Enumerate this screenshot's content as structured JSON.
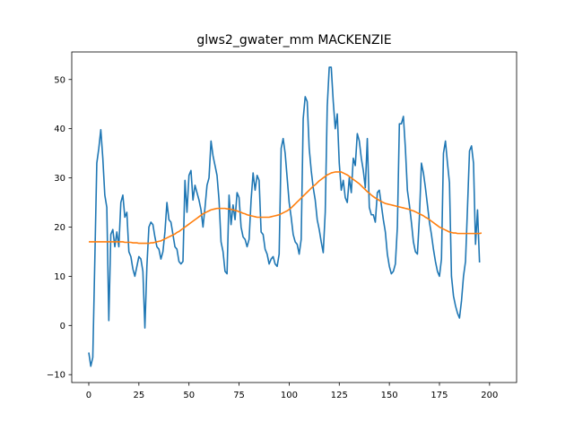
{
  "chart_data": {
    "type": "line",
    "title": "glws2_gwater_mm MACKENZIE",
    "xlabel": "",
    "ylabel": "",
    "xlim": [
      -8.5,
      213.5
    ],
    "ylim": [
      -11.6,
      55.6
    ],
    "xticks": [
      0,
      25,
      50,
      75,
      100,
      125,
      150,
      175,
      200
    ],
    "yticks": [
      -10,
      0,
      10,
      20,
      30,
      40,
      50
    ],
    "grid": false,
    "colors": [
      "#1f77b4",
      "#ff7f0e"
    ],
    "series": [
      {
        "values": [
          -5.5,
          -8.3,
          -6.5,
          13.0,
          33.0,
          36.0,
          39.8,
          34.0,
          26.5,
          24.0,
          1.0,
          18.5,
          19.5,
          16.0,
          19.0,
          16.0,
          25.0,
          26.5,
          22.0,
          23.0,
          15.0,
          14.0,
          11.5,
          10.0,
          12.0,
          14.0,
          13.5,
          11.0,
          -0.5,
          12.0,
          20.0,
          21.0,
          20.5,
          18.0,
          16.0,
          15.5,
          13.5,
          15.0,
          19.0,
          25.0,
          21.5,
          21.0,
          18.5,
          16.0,
          15.5,
          13.0,
          12.5,
          13.0,
          29.5,
          23.0,
          30.5,
          31.5,
          25.5,
          28.5,
          27.0,
          25.5,
          23.5,
          20.0,
          24.0,
          28.5,
          30.0,
          37.5,
          34.5,
          32.5,
          30.5,
          25.5,
          17.0,
          15.0,
          11.0,
          10.5,
          26.5,
          20.5,
          24.5,
          21.5,
          27.0,
          26.0,
          20.0,
          18.0,
          17.5,
          16.0,
          17.5,
          25.5,
          31.0,
          27.5,
          30.5,
          29.5,
          19.0,
          18.5,
          15.5,
          14.5,
          12.5,
          13.5,
          14.0,
          12.5,
          12.0,
          14.5,
          36.0,
          38.0,
          35.0,
          30.0,
          25.0,
          22.0,
          18.5,
          17.0,
          16.5,
          14.5,
          17.5,
          42.0,
          46.5,
          45.5,
          36.0,
          31.5,
          28.0,
          25.5,
          21.5,
          19.5,
          17.0,
          14.8,
          23.0,
          44.5,
          52.5,
          52.5,
          45.5,
          40.0,
          43.0,
          33.0,
          27.5,
          29.5,
          26.0,
          25.0,
          30.0,
          27.0,
          34.0,
          32.5,
          39.0,
          37.5,
          34.0,
          31.5,
          28.0,
          38.0,
          24.0,
          22.5,
          22.5,
          21.0,
          27.0,
          27.5,
          24.5,
          21.5,
          19.0,
          14.5,
          12.0,
          10.5,
          11.0,
          12.5,
          20.0,
          41.0,
          41.0,
          42.5,
          36.0,
          27.5,
          24.5,
          21.0,
          17.0,
          15.0,
          14.5,
          22.0,
          33.0,
          31.0,
          28.0,
          24.5,
          21.0,
          18.5,
          15.5,
          13.0,
          11.0,
          10.0,
          13.5,
          35.0,
          37.5,
          33.0,
          29.0,
          10.0,
          6.0,
          4.0,
          2.5,
          1.5,
          5.0,
          10.0,
          13.0,
          24.0,
          35.5,
          36.5,
          33.0,
          16.5,
          23.5,
          12.8
        ]
      },
      {
        "values": [
          17.0,
          17.0,
          17.0,
          17.0,
          17.0,
          17.0,
          17.0,
          17.0,
          17.0,
          17.0,
          17.0,
          17.0,
          17.0,
          17.0,
          17.0,
          17.0,
          17.0,
          17.0,
          16.9,
          16.9,
          16.9,
          16.9,
          16.8,
          16.8,
          16.8,
          16.7,
          16.7,
          16.7,
          16.7,
          16.7,
          16.7,
          16.8,
          16.8,
          16.9,
          17.0,
          17.1,
          17.2,
          17.4,
          17.6,
          17.8,
          18.0,
          18.2,
          18.4,
          18.6,
          18.9,
          19.1,
          19.4,
          19.7,
          20.0,
          20.3,
          20.6,
          20.9,
          21.2,
          21.5,
          21.8,
          22.1,
          22.4,
          22.7,
          22.9,
          23.1,
          23.3,
          23.5,
          23.6,
          23.7,
          23.8,
          23.8,
          23.8,
          23.8,
          23.8,
          23.7,
          23.7,
          23.6,
          23.5,
          23.4,
          23.3,
          23.1,
          23.0,
          22.8,
          22.7,
          22.5,
          22.4,
          22.3,
          22.2,
          22.1,
          22.0,
          22.0,
          22.0,
          22.0,
          22.0,
          22.0,
          22.0,
          22.1,
          22.2,
          22.3,
          22.4,
          22.5,
          22.7,
          22.9,
          23.1,
          23.3,
          23.6,
          23.9,
          24.3,
          24.7,
          25.1,
          25.5,
          25.9,
          26.3,
          26.7,
          27.1,
          27.5,
          27.9,
          28.3,
          28.6,
          29.0,
          29.4,
          29.7,
          30.0,
          30.3,
          30.6,
          30.8,
          31.0,
          31.1,
          31.2,
          31.2,
          31.2,
          31.2,
          31.0,
          30.8,
          30.6,
          30.3,
          30.0,
          29.7,
          29.4,
          29.1,
          28.8,
          28.4,
          28.0,
          27.6,
          27.2,
          26.9,
          26.5,
          26.2,
          25.9,
          25.7,
          25.4,
          25.2,
          25.0,
          24.8,
          24.7,
          24.6,
          24.5,
          24.4,
          24.3,
          24.2,
          24.1,
          24.0,
          23.9,
          23.8,
          23.7,
          23.6,
          23.4,
          23.3,
          23.1,
          22.9,
          22.7,
          22.5,
          22.3,
          22.0,
          21.8,
          21.5,
          21.2,
          20.9,
          20.6,
          20.3,
          20.0,
          19.8,
          19.6,
          19.4,
          19.2,
          19.0,
          18.9,
          18.8,
          18.8,
          18.7,
          18.7,
          18.7,
          18.7,
          18.7,
          18.7,
          18.7,
          18.7,
          18.7,
          18.7,
          18.7,
          18.7,
          18.8
        ]
      }
    ]
  }
}
